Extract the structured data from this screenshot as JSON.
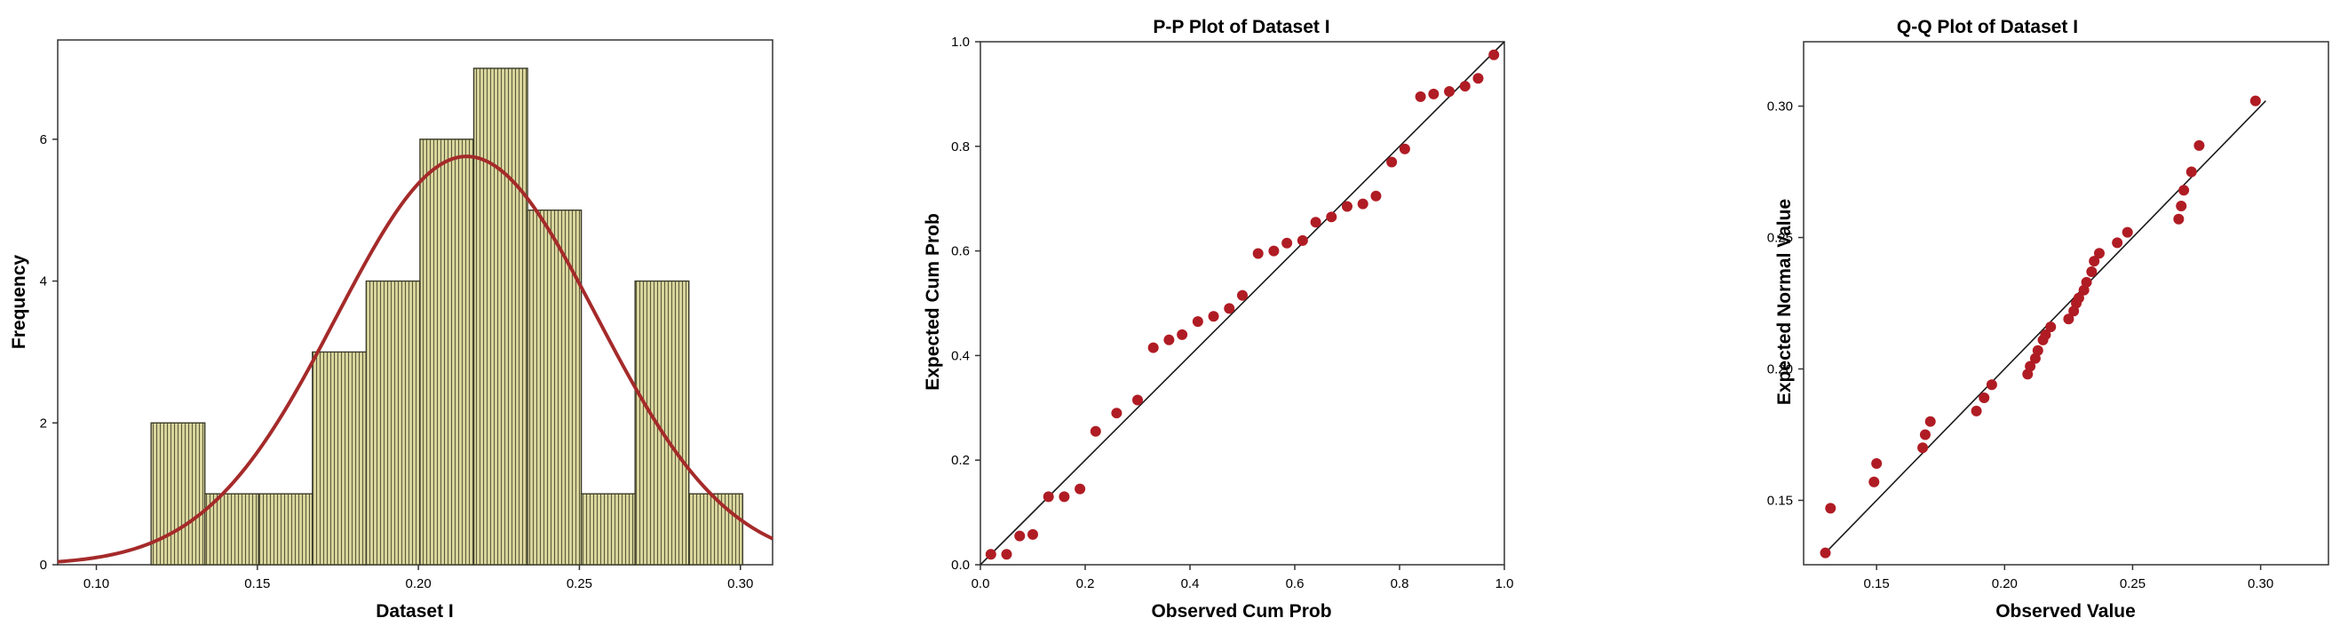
{
  "colors": {
    "bar_fill": "#d8d49c",
    "bar_stripe": "#5a5a3a",
    "curve": "#a52a2a",
    "point": "#b01c24",
    "line": "#1a1a1a",
    "frame": "#333333"
  },
  "chart_data": [
    {
      "type": "bar",
      "subtype": "histogram",
      "title": "",
      "xlabel": "Dataset I",
      "ylabel": "Frequency",
      "xlim": [
        0.088,
        0.31
      ],
      "ylim": [
        0,
        7.4
      ],
      "xticks": [
        "0.10",
        "0.15",
        "0.20",
        "0.25",
        "0.30"
      ],
      "xtick_values": [
        0.1,
        0.15,
        0.2,
        0.25,
        0.3
      ],
      "yticks": [
        "0",
        "2",
        "4",
        "6"
      ],
      "ytick_values": [
        0,
        2,
        4,
        6
      ],
      "bin_start": 0.117,
      "bin_width": 0.0167,
      "values": [
        2,
        1,
        1,
        3,
        4,
        6,
        7,
        5,
        1,
        4,
        1
      ],
      "normal_curve": {
        "mean": 0.215,
        "sd": 0.0405,
        "n": 35
      }
    },
    {
      "type": "scatter",
      "title": "P-P Plot of Dataset I",
      "xlabel": "Observed Cum Prob",
      "ylabel": "Expected Cum Prob",
      "xlim": [
        0,
        1
      ],
      "ylim": [
        0,
        1
      ],
      "xticks": [
        "0.0",
        "0.2",
        "0.4",
        "0.6",
        "0.8",
        "1.0"
      ],
      "xtick_values": [
        0,
        0.2,
        0.4,
        0.6,
        0.8,
        1.0
      ],
      "yticks": [
        "0.0",
        "0.2",
        "0.4",
        "0.6",
        "0.8",
        "1.0"
      ],
      "ytick_values": [
        0,
        0.2,
        0.4,
        0.6,
        0.8,
        1.0
      ],
      "reference_line": [
        [
          0,
          0
        ],
        [
          1,
          1
        ]
      ],
      "x": [
        0.02,
        0.05,
        0.075,
        0.1,
        0.13,
        0.16,
        0.19,
        0.22,
        0.26,
        0.3,
        0.33,
        0.36,
        0.385,
        0.415,
        0.445,
        0.475,
        0.5,
        0.53,
        0.56,
        0.585,
        0.615,
        0.64,
        0.67,
        0.7,
        0.73,
        0.755,
        0.785,
        0.81,
        0.84,
        0.865,
        0.895,
        0.925,
        0.95,
        0.98
      ],
      "y": [
        0.02,
        0.02,
        0.055,
        0.058,
        0.13,
        0.13,
        0.145,
        0.255,
        0.29,
        0.315,
        0.415,
        0.43,
        0.44,
        0.465,
        0.475,
        0.49,
        0.515,
        0.595,
        0.6,
        0.615,
        0.62,
        0.655,
        0.665,
        0.685,
        0.69,
        0.705,
        0.77,
        0.795,
        0.895,
        0.9,
        0.905,
        0.915,
        0.93,
        0.975
      ]
    },
    {
      "type": "scatter",
      "title": "Q-Q Plot of Dataset I",
      "xlabel": "Observed Value",
      "ylabel": "Expected Normal Value",
      "xlim": [
        0.1215,
        0.3265
      ],
      "ylim": [
        0.1255,
        0.3245
      ],
      "xticks": [
        "0.15",
        "0.20",
        "0.25",
        "0.30"
      ],
      "xtick_values": [
        0.15,
        0.2,
        0.25,
        0.3
      ],
      "yticks": [
        "0.15",
        "0.20",
        "0.25",
        "0.30"
      ],
      "ytick_values": [
        0.15,
        0.2,
        0.25,
        0.3
      ],
      "reference_line": [
        [
          0.13,
          0.13
        ],
        [
          0.302,
          0.302
        ]
      ],
      "x": [
        0.13,
        0.132,
        0.149,
        0.15,
        0.168,
        0.169,
        0.171,
        0.189,
        0.192,
        0.195,
        0.209,
        0.21,
        0.212,
        0.213,
        0.215,
        0.216,
        0.218,
        0.225,
        0.227,
        0.228,
        0.229,
        0.231,
        0.232,
        0.234,
        0.235,
        0.237,
        0.244,
        0.248,
        0.268,
        0.269,
        0.27,
        0.273,
        0.276,
        0.298
      ],
      "y": [
        0.13,
        0.147,
        0.157,
        0.164,
        0.17,
        0.175,
        0.18,
        0.184,
        0.189,
        0.194,
        0.198,
        0.201,
        0.204,
        0.207,
        0.211,
        0.213,
        0.216,
        0.219,
        0.222,
        0.225,
        0.227,
        0.23,
        0.233,
        0.237,
        0.241,
        0.244,
        0.248,
        0.252,
        0.257,
        0.262,
        0.268,
        0.275,
        0.285,
        0.302
      ]
    }
  ]
}
